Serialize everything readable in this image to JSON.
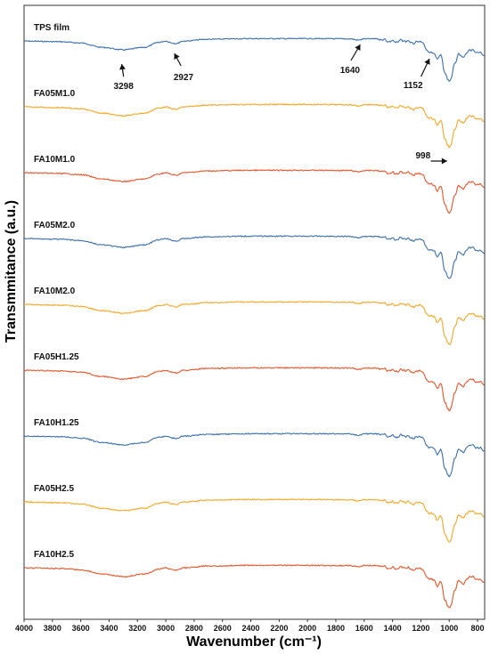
{
  "chart_data": {
    "type": "line",
    "xlabel": "Wavenumber (cm⁻¹)",
    "ylabel": "Transmmitance (a.u.)",
    "xlim": [
      4000,
      750
    ],
    "x_reversed": true,
    "x_ticks": [
      4000,
      3800,
      3600,
      3400,
      3200,
      3000,
      2800,
      2600,
      2400,
      2200,
      2000,
      1800,
      1600,
      1400,
      1200,
      1000,
      800
    ],
    "grid": false,
    "legend": "none",
    "series": [
      {
        "name": "TPS film",
        "color": "#3a6fae",
        "offset": 0
      },
      {
        "name": "FA05M1.0",
        "color": "#f5a623",
        "offset": 1
      },
      {
        "name": "FA10M1.0",
        "color": "#e8552a",
        "offset": 2
      },
      {
        "name": "FA05M2.0",
        "color": "#3a6fae",
        "offset": 3
      },
      {
        "name": "FA10M2.0",
        "color": "#f5a623",
        "offset": 4
      },
      {
        "name": "FA05H1.25",
        "color": "#e8552a",
        "offset": 5
      },
      {
        "name": "FA10H1.25",
        "color": "#3a6fae",
        "offset": 6
      },
      {
        "name": "FA05H2.5",
        "color": "#f5a623",
        "offset": 7
      },
      {
        "name": "FA10H2.5",
        "color": "#e8552a",
        "offset": 8
      }
    ],
    "spectrum_shape": {
      "baseline_points": [
        [
          4000,
          0.3
        ],
        [
          3750,
          0.35
        ],
        [
          3600,
          0.45
        ],
        [
          3450,
          0.8
        ],
        [
          3300,
          1.0
        ],
        [
          3150,
          0.8
        ],
        [
          3050,
          0.4
        ],
        [
          3000,
          0.3
        ],
        [
          2950,
          0.45
        ],
        [
          2927,
          0.5
        ],
        [
          2880,
          0.3
        ],
        [
          2700,
          0.15
        ],
        [
          2400,
          0.1
        ],
        [
          2000,
          0.1
        ],
        [
          1700,
          0.12
        ],
        [
          1640,
          0.22
        ],
        [
          1600,
          0.12
        ],
        [
          1500,
          0.12
        ],
        [
          1420,
          0.3
        ],
        [
          1370,
          0.35
        ],
        [
          1330,
          0.25
        ],
        [
          1240,
          0.45
        ],
        [
          1200,
          0.3
        ],
        [
          1152,
          1.1
        ],
        [
          1110,
          1.3
        ],
        [
          1080,
          1.7
        ],
        [
          1060,
          1.4
        ],
        [
          1030,
          2.8
        ],
        [
          1010,
          3.4
        ],
        [
          998,
          3.6
        ],
        [
          960,
          2.1
        ],
        [
          930,
          1.3
        ],
        [
          900,
          1.6
        ],
        [
          860,
          1.0
        ],
        [
          800,
          1.2
        ],
        [
          760,
          1.4
        ],
        [
          750,
          1.5
        ]
      ]
    },
    "annotations": [
      {
        "text": "3298",
        "x": 3298
      },
      {
        "text": "2927",
        "x": 2927
      },
      {
        "text": "1640",
        "x": 1640
      },
      {
        "text": "1152",
        "x": 1152
      },
      {
        "text": "998",
        "x": 998
      }
    ]
  }
}
